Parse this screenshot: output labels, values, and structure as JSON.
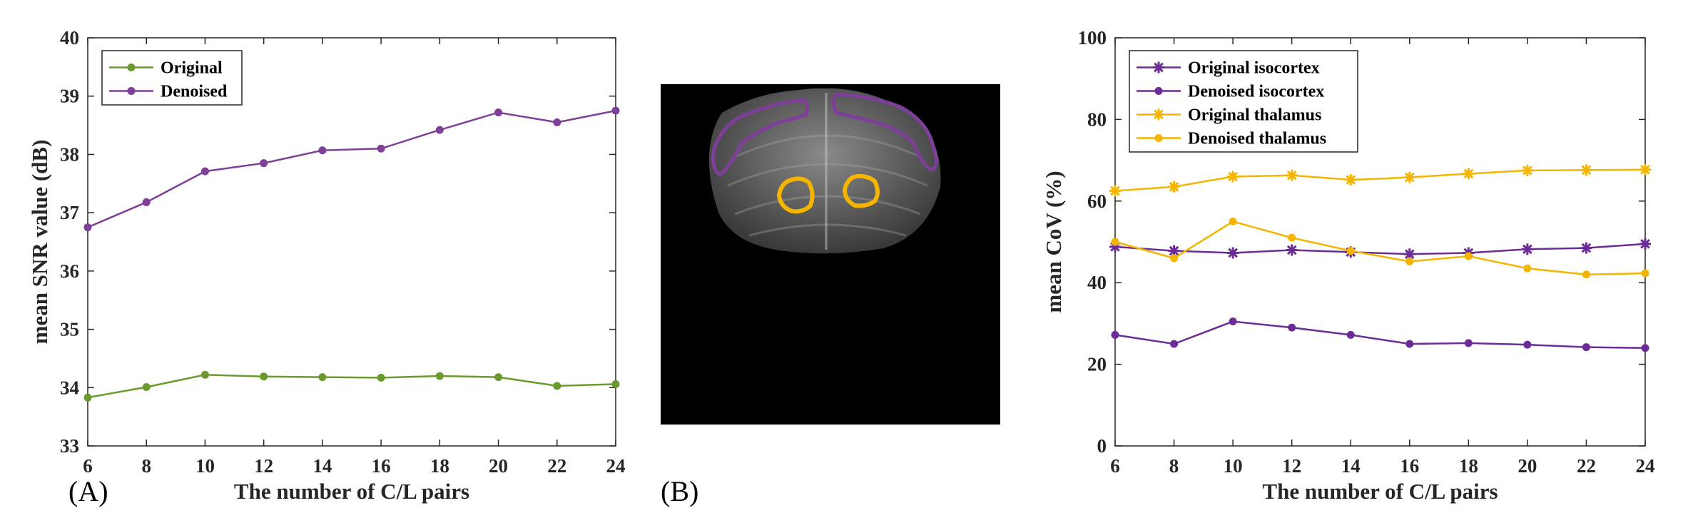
{
  "panels": {
    "a_label": "(A)",
    "b_label": "(B)"
  },
  "chart_data": [
    {
      "type": "line",
      "title": "",
      "xlabel": "The number of C/L pairs",
      "ylabel": "mean SNR value (dB)",
      "xlim": [
        6,
        24
      ],
      "ylim": [
        33,
        40
      ],
      "xticks": [
        6,
        8,
        10,
        12,
        14,
        16,
        18,
        20,
        22,
        24
      ],
      "yticks": [
        33,
        34,
        35,
        36,
        37,
        38,
        39,
        40
      ],
      "x": [
        6,
        8,
        10,
        12,
        14,
        16,
        18,
        20,
        22,
        24
      ],
      "legend_position": "top-left",
      "grid": false,
      "series": [
        {
          "name": "Original",
          "color": "#6a9a2e",
          "marker": "dot",
          "values": [
            33.83,
            34.01,
            34.22,
            34.19,
            34.18,
            34.17,
            34.2,
            34.18,
            34.03,
            34.06
          ]
        },
        {
          "name": "Denoised",
          "color": "#7e3f98",
          "marker": "dot",
          "values": [
            36.75,
            37.18,
            37.71,
            37.85,
            38.07,
            38.1,
            38.42,
            38.72,
            38.55,
            38.75
          ]
        }
      ]
    },
    {
      "type": "line",
      "title": "",
      "xlabel": "The number of C/L pairs",
      "ylabel": "mean CoV (%)",
      "xlim": [
        6,
        24
      ],
      "ylim": [
        0,
        100
      ],
      "xticks": [
        6,
        8,
        10,
        12,
        14,
        16,
        18,
        20,
        22,
        24
      ],
      "yticks": [
        0,
        20,
        40,
        60,
        80,
        100
      ],
      "x": [
        6,
        8,
        10,
        12,
        14,
        16,
        18,
        20,
        22,
        24
      ],
      "legend_position": "top-left",
      "grid": false,
      "series": [
        {
          "name": "Original isocortex",
          "color": "#6b2c96",
          "marker": "star",
          "values": [
            48.8,
            47.8,
            47.3,
            48.0,
            47.5,
            47.0,
            47.3,
            48.2,
            48.5,
            49.5
          ]
        },
        {
          "name": "Denoised isocortex",
          "color": "#6b2c96",
          "marker": "dot",
          "values": [
            27.2,
            25.0,
            30.5,
            29.0,
            27.2,
            25.0,
            25.2,
            24.8,
            24.2,
            24.0
          ]
        },
        {
          "name": "Original thalamus",
          "color": "#f4b400",
          "marker": "star",
          "values": [
            62.5,
            63.5,
            66.0,
            66.3,
            65.2,
            65.8,
            66.7,
            67.5,
            67.6,
            67.7
          ]
        },
        {
          "name": "Denoised thalamus",
          "color": "#f4b400",
          "marker": "dot",
          "values": [
            50.0,
            46.0,
            55.0,
            51.0,
            47.8,
            45.2,
            46.5,
            43.5,
            42.0,
            42.3
          ]
        }
      ]
    }
  ],
  "mri": {
    "isocortex_roi_color": "#7e3f98",
    "thalamus_roi_color": "#f4b400"
  }
}
